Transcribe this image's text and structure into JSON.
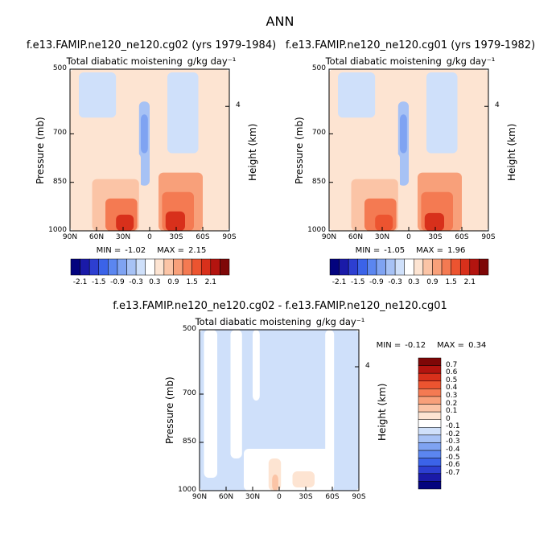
{
  "figure": {
    "title": "ANN"
  },
  "chart_data": [
    {
      "type": "heatmap",
      "panel": "top-left",
      "case_title": "f.e13.FAMIP.ne120_ne120.cg02 (yrs 1979-1984)",
      "variable": "Total diabatic moistening",
      "units": "g/kg day⁻¹",
      "xlabel": "",
      "ylabel": "Pressure (mb)",
      "y2label": "Height (km)",
      "x_ticks": [
        "90N",
        "60N",
        "30N",
        "0",
        "30S",
        "60S",
        "90S"
      ],
      "y_ticks": [
        "500",
        "700",
        "850",
        "1000"
      ],
      "y2_ticks": [
        "4"
      ],
      "stats": {
        "min_label": "MIN =",
        "min": "-1.02",
        "max_label": "MAX =",
        "max": "2.15"
      },
      "colorbar": {
        "orientation": "horizontal",
        "labels": [
          "-2.1",
          "-1.5",
          "-0.9",
          "-0.3",
          "0.3",
          "0.9",
          "1.5",
          "2.1"
        ],
        "colors": [
          "#03037e",
          "#1a1aa8",
          "#2d3fd1",
          "#3b63e8",
          "#5b86f0",
          "#7fa3f2",
          "#a7c2f5",
          "#cfe0fa",
          "#ffffff",
          "#fde4d2",
          "#fbc4a6",
          "#f8a07a",
          "#f47a52",
          "#ec5430",
          "#d8301b",
          "#b3140f",
          "#7e0707"
        ]
      },
      "zones": [
        {
          "x": [
            -90,
            90
          ],
          "p": [
            500,
            1000
          ],
          "v": 0.15
        },
        {
          "x": [
            -80,
            -38
          ],
          "p": [
            510,
            650
          ],
          "v": -0.25
        },
        {
          "x": [
            20,
            55
          ],
          "p": [
            510,
            760
          ],
          "v": -0.25
        },
        {
          "x": [
            -12,
            0
          ],
          "p": [
            600,
            860
          ],
          "v": -0.5
        },
        {
          "x": [
            -10,
            -2
          ],
          "p": [
            640,
            760
          ],
          "v": -0.85
        },
        {
          "x": [
            -80,
            -10
          ],
          "p": [
            760,
            1000
          ],
          "v": 0.35
        },
        {
          "x": [
            5,
            75
          ],
          "p": [
            760,
            1000
          ],
          "v": 0.4
        },
        {
          "x": [
            -65,
            -12
          ],
          "p": [
            840,
            1000
          ],
          "v": 0.75
        },
        {
          "x": [
            10,
            60
          ],
          "p": [
            820,
            1000
          ],
          "v": 0.8
        },
        {
          "x": [
            -50,
            -14
          ],
          "p": [
            900,
            1000
          ],
          "v": 1.15
        },
        {
          "x": [
            14,
            50
          ],
          "p": [
            880,
            1000
          ],
          "v": 1.3
        },
        {
          "x": [
            -38,
            -18
          ],
          "p": [
            950,
            1000
          ],
          "v": 1.7
        },
        {
          "x": [
            18,
            40
          ],
          "p": [
            940,
            1000
          ],
          "v": 1.9
        }
      ]
    },
    {
      "type": "heatmap",
      "panel": "top-right",
      "case_title": "f.e13.FAMIP.ne120_ne120.cg01 (yrs 1979-1982)",
      "variable": "Total diabatic moistening",
      "units": "g/kg day⁻¹",
      "xlabel": "",
      "ylabel": "Pressure (mb)",
      "y2label": "Height (km)",
      "x_ticks": [
        "90N",
        "60N",
        "30N",
        "0",
        "30S",
        "60S",
        "90S"
      ],
      "y_ticks": [
        "500",
        "700",
        "850",
        "1000"
      ],
      "y2_ticks": [
        "4"
      ],
      "stats": {
        "min_label": "MIN =",
        "min": "-1.05",
        "max_label": "MAX =",
        "max": "1.96"
      },
      "colorbar": {
        "orientation": "horizontal",
        "labels": [
          "-2.1",
          "-1.5",
          "-0.9",
          "-0.3",
          "0.3",
          "0.9",
          "1.5",
          "2.1"
        ],
        "colors": [
          "#03037e",
          "#1a1aa8",
          "#2d3fd1",
          "#3b63e8",
          "#5b86f0",
          "#7fa3f2",
          "#a7c2f5",
          "#cfe0fa",
          "#ffffff",
          "#fde4d2",
          "#fbc4a6",
          "#f8a07a",
          "#f47a52",
          "#ec5430",
          "#d8301b",
          "#b3140f",
          "#7e0707"
        ]
      },
      "zones": [
        {
          "x": [
            -90,
            90
          ],
          "p": [
            500,
            1000
          ],
          "v": 0.15
        },
        {
          "x": [
            -80,
            -38
          ],
          "p": [
            510,
            650
          ],
          "v": -0.25
        },
        {
          "x": [
            20,
            55
          ],
          "p": [
            510,
            760
          ],
          "v": -0.25
        },
        {
          "x": [
            -12,
            0
          ],
          "p": [
            600,
            860
          ],
          "v": -0.5
        },
        {
          "x": [
            -10,
            -2
          ],
          "p": [
            640,
            760
          ],
          "v": -0.85
        },
        {
          "x": [
            -80,
            -10
          ],
          "p": [
            760,
            1000
          ],
          "v": 0.35
        },
        {
          "x": [
            5,
            75
          ],
          "p": [
            760,
            1000
          ],
          "v": 0.4
        },
        {
          "x": [
            -65,
            -12
          ],
          "p": [
            840,
            1000
          ],
          "v": 0.75
        },
        {
          "x": [
            10,
            60
          ],
          "p": [
            820,
            1000
          ],
          "v": 0.8
        },
        {
          "x": [
            -50,
            -14
          ],
          "p": [
            900,
            1000
          ],
          "v": 1.15
        },
        {
          "x": [
            14,
            50
          ],
          "p": [
            880,
            1000
          ],
          "v": 1.25
        },
        {
          "x": [
            -38,
            -18
          ],
          "p": [
            950,
            1000
          ],
          "v": 1.6
        },
        {
          "x": [
            18,
            40
          ],
          "p": [
            945,
            1000
          ],
          "v": 1.75
        }
      ]
    },
    {
      "type": "heatmap",
      "panel": "bottom",
      "case_title": "f.e13.FAMIP.ne120_ne120.cg02 - f.e13.FAMIP.ne120_ne120.cg01",
      "variable": "Total diabatic moistening",
      "units": "g/kg day⁻¹",
      "xlabel": "",
      "ylabel": "Pressure (mb)",
      "y2label": "Height (km)",
      "x_ticks": [
        "90N",
        "60N",
        "30N",
        "0",
        "30S",
        "60S",
        "90S"
      ],
      "y_ticks": [
        "500",
        "700",
        "850",
        "1000"
      ],
      "y2_ticks": [
        "4"
      ],
      "stats": {
        "min_label": "MIN =",
        "min": "-0.12",
        "max_label": "MAX =",
        "max": "0.34"
      },
      "colorbar": {
        "orientation": "vertical",
        "labels": [
          "0.7",
          "0.6",
          "0.5",
          "0.4",
          "0.3",
          "0.2",
          "0.1",
          "0",
          "-0.1",
          "-0.2",
          "-0.3",
          "-0.4",
          "-0.5",
          "-0.6",
          "-0.7"
        ],
        "colors": [
          "#7e0707",
          "#b3140f",
          "#d8301b",
          "#ec5430",
          "#f47a52",
          "#f8a07a",
          "#fbc4a6",
          "#fde4d2",
          "#ffffff",
          "#cfe0fa",
          "#a7c2f5",
          "#7fa3f2",
          "#5b86f0",
          "#3b63e8",
          "#2d3fd1",
          "#1a1aa8",
          "#03037e"
        ]
      },
      "zones": [
        {
          "x": [
            -90,
            90
          ],
          "p": [
            500,
            1000
          ],
          "v": -0.05
        },
        {
          "x": [
            -85,
            -70
          ],
          "p": [
            500,
            960
          ],
          "v": 0.05
        },
        {
          "x": [
            -55,
            -42
          ],
          "p": [
            500,
            900
          ],
          "v": 0.05
        },
        {
          "x": [
            -30,
            -22
          ],
          "p": [
            500,
            720
          ],
          "v": 0.05
        },
        {
          "x": [
            52,
            62
          ],
          "p": [
            500,
            1000
          ],
          "v": 0.05
        },
        {
          "x": [
            -40,
            60
          ],
          "p": [
            870,
            1000
          ],
          "v": 0.05
        },
        {
          "x": [
            -12,
            2
          ],
          "p": [
            900,
            1000
          ],
          "v": 0.15
        },
        {
          "x": [
            -8,
            -1
          ],
          "p": [
            950,
            1000
          ],
          "v": 0.25
        },
        {
          "x": [
            15,
            40
          ],
          "p": [
            940,
            990
          ],
          "v": 0.15
        }
      ]
    }
  ]
}
